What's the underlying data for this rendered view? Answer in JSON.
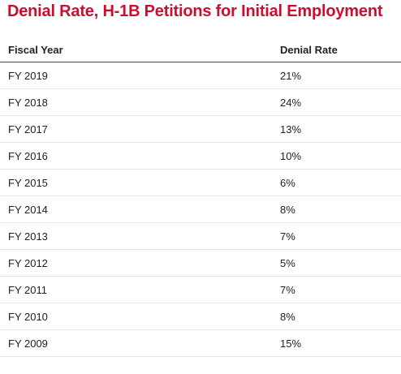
{
  "header": {
    "title": "Denial Rate, H-1B Petitions for Initial Employment"
  },
  "table": {
    "columns": [
      "Fiscal Year",
      "Denial Rate"
    ],
    "rows": [
      [
        "FY 2019",
        "21%"
      ],
      [
        "FY 2018",
        "24%"
      ],
      [
        "FY 2017",
        "13%"
      ],
      [
        "FY 2016",
        "10%"
      ],
      [
        "FY 2015",
        "6%"
      ],
      [
        "FY 2014",
        "8%"
      ],
      [
        "FY 2013",
        "7%"
      ],
      [
        "FY 2012",
        "5%"
      ],
      [
        "FY 2011",
        "7%"
      ],
      [
        "FY 2010",
        "8%"
      ],
      [
        "FY 2009",
        "15%"
      ]
    ]
  }
}
